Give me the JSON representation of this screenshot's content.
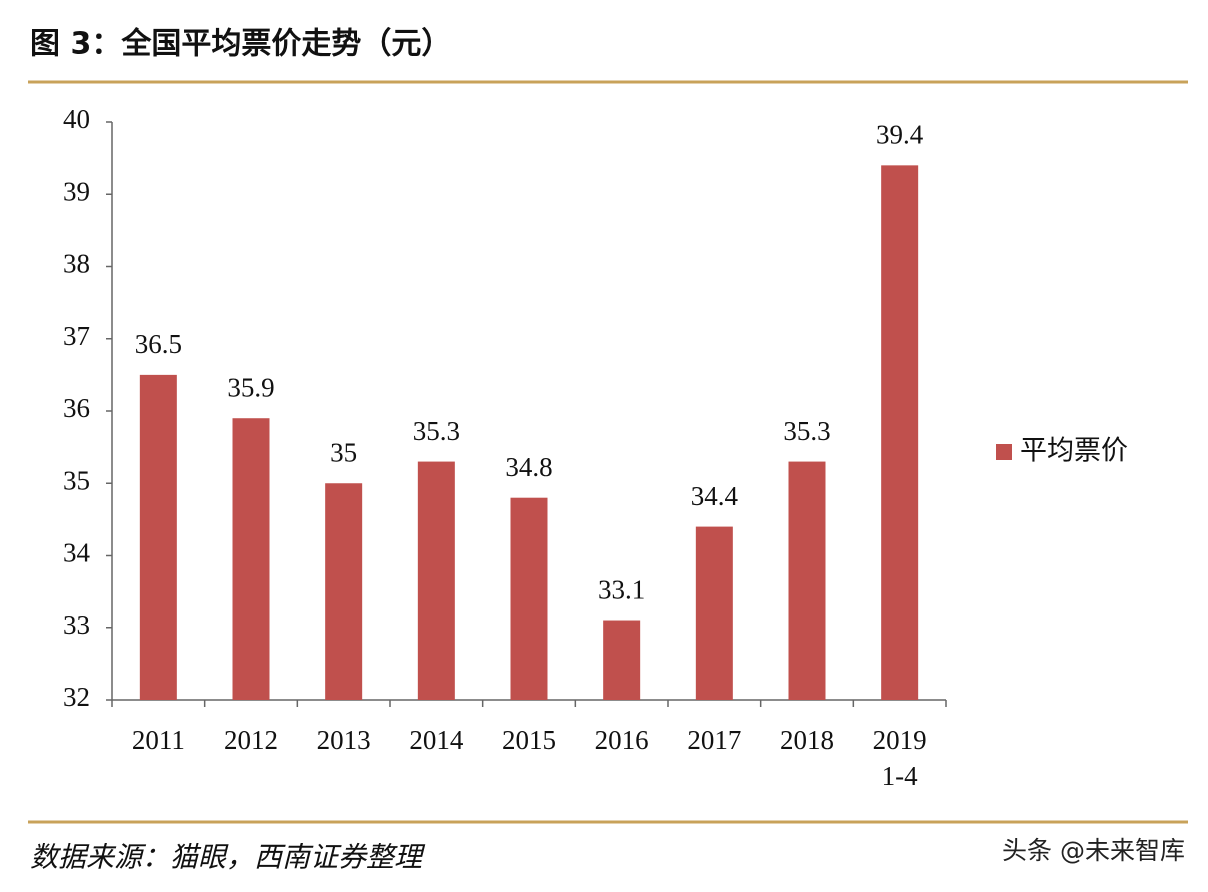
{
  "chart_data": {
    "type": "bar",
    "title": "图 3：全国平均票价走势（元）",
    "categories": [
      "2011",
      "2012",
      "2013",
      "2014",
      "2015",
      "2016",
      "2017",
      "2018",
      "2019\n1-4"
    ],
    "series": [
      {
        "name": "平均票价",
        "color": "#c0504d",
        "values": [
          36.5,
          35.9,
          35,
          35.3,
          34.8,
          33.1,
          34.4,
          35.3,
          39.4
        ]
      }
    ],
    "ylim": [
      32,
      40
    ],
    "yticks": [
      32,
      33,
      34,
      35,
      36,
      37,
      38,
      39,
      40
    ],
    "grid": false,
    "legend": "right",
    "source": "数据来源：猫眼，西南证券整理",
    "watermark": "头条 @未来智库"
  }
}
